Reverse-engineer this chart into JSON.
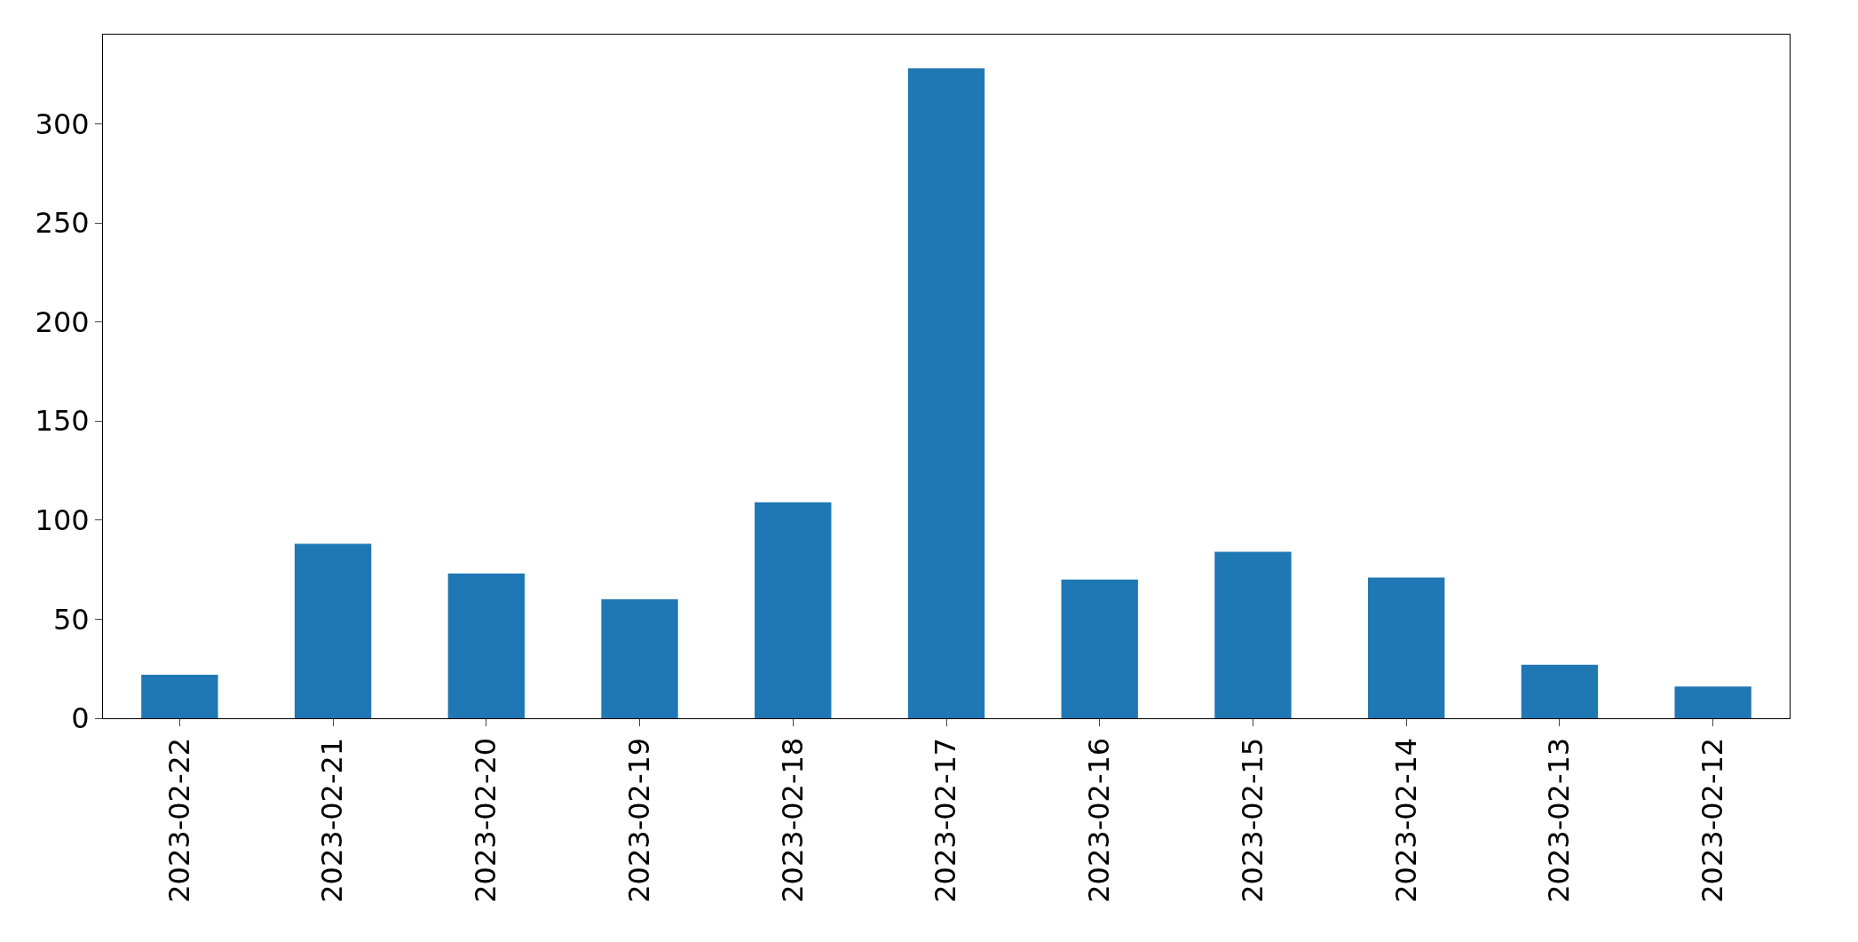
{
  "chart_data": {
    "type": "bar",
    "categories": [
      "2023-02-22",
      "2023-02-21",
      "2023-02-20",
      "2023-02-19",
      "2023-02-18",
      "2023-02-17",
      "2023-02-16",
      "2023-02-15",
      "2023-02-14",
      "2023-02-13",
      "2023-02-12"
    ],
    "values": [
      22,
      88,
      73,
      60,
      109,
      328,
      70,
      84,
      71,
      27,
      16
    ],
    "color": "#1f77b4",
    "ylim": [
      0,
      345
    ],
    "yticks": [
      0,
      50,
      100,
      150,
      200,
      250,
      300
    ],
    "grid": false
  }
}
